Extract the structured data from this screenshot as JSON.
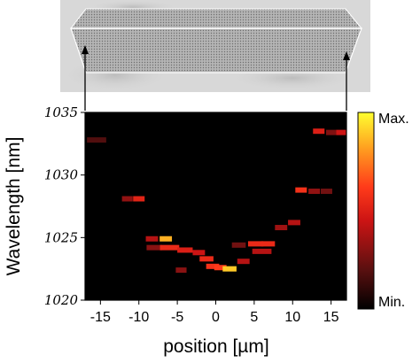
{
  "chart_data": {
    "type": "heatmap",
    "xlabel": "position [µm]",
    "ylabel": "Wavelength [nm]",
    "xlim": [
      -17,
      17
    ],
    "ylim": [
      1020,
      1035
    ],
    "x_ticks": [
      -15,
      -10,
      -5,
      0,
      5,
      10,
      15
    ],
    "x_tick_labels": [
      "-15",
      "-10",
      "-5",
      "0",
      "5",
      "10",
      "15"
    ],
    "y_ticks": [
      1020,
      1025,
      1030,
      1035
    ],
    "y_tick_labels": [
      "1020",
      "1025",
      "1030",
      "1035"
    ],
    "colorbar": {
      "max_label": "Max.",
      "min_label": "Min.",
      "colors": [
        "#000000",
        "#5a1010",
        "#cc1414",
        "#ff3a1a",
        "#ffa020",
        "#ffff30"
      ]
    },
    "grid": false,
    "points": [
      {
        "x": -15.5,
        "y": 1032.8,
        "w": 2.5,
        "i": 0.18
      },
      {
        "x": -11.5,
        "y": 1028.1,
        "w": 1.4,
        "i": 0.32
      },
      {
        "x": -10.0,
        "y": 1028.1,
        "w": 1.5,
        "i": 0.52
      },
      {
        "x": -8.3,
        "y": 1024.9,
        "w": 1.6,
        "i": 0.4
      },
      {
        "x": -8.0,
        "y": 1024.2,
        "w": 2.0,
        "i": 0.3
      },
      {
        "x": -6.5,
        "y": 1024.9,
        "w": 1.6,
        "i": 0.85
      },
      {
        "x": -6.0,
        "y": 1024.2,
        "w": 2.5,
        "i": 0.55
      },
      {
        "x": -4.0,
        "y": 1024.0,
        "w": 2.0,
        "i": 0.5
      },
      {
        "x": -4.5,
        "y": 1022.4,
        "w": 1.4,
        "i": 0.3
      },
      {
        "x": -2.2,
        "y": 1023.8,
        "w": 1.6,
        "i": 0.45
      },
      {
        "x": -1.2,
        "y": 1023.3,
        "w": 1.8,
        "i": 0.55
      },
      {
        "x": -0.4,
        "y": 1022.7,
        "w": 1.7,
        "i": 0.58
      },
      {
        "x": 0.6,
        "y": 1022.6,
        "w": 1.6,
        "i": 0.62
      },
      {
        "x": 1.8,
        "y": 1022.5,
        "w": 1.8,
        "i": 0.9
      },
      {
        "x": 3.6,
        "y": 1023.1,
        "w": 1.6,
        "i": 0.4
      },
      {
        "x": 3.0,
        "y": 1024.4,
        "w": 1.8,
        "i": 0.25
      },
      {
        "x": 5.2,
        "y": 1024.5,
        "w": 2.0,
        "i": 0.55
      },
      {
        "x": 6.8,
        "y": 1024.5,
        "w": 1.8,
        "i": 0.55
      },
      {
        "x": 6.0,
        "y": 1023.9,
        "w": 2.5,
        "i": 0.4
      },
      {
        "x": 8.5,
        "y": 1025.8,
        "w": 1.6,
        "i": 0.35
      },
      {
        "x": 10.2,
        "y": 1026.2,
        "w": 1.6,
        "i": 0.4
      },
      {
        "x": 11.1,
        "y": 1028.8,
        "w": 1.5,
        "i": 0.58
      },
      {
        "x": 12.8,
        "y": 1028.7,
        "w": 1.5,
        "i": 0.32
      },
      {
        "x": 14.4,
        "y": 1028.7,
        "w": 1.5,
        "i": 0.25
      },
      {
        "x": 13.4,
        "y": 1033.5,
        "w": 1.5,
        "i": 0.5
      },
      {
        "x": 15.0,
        "y": 1033.4,
        "w": 1.3,
        "i": 0.28
      },
      {
        "x": 16.3,
        "y": 1033.4,
        "w": 1.3,
        "i": 0.45
      }
    ]
  }
}
